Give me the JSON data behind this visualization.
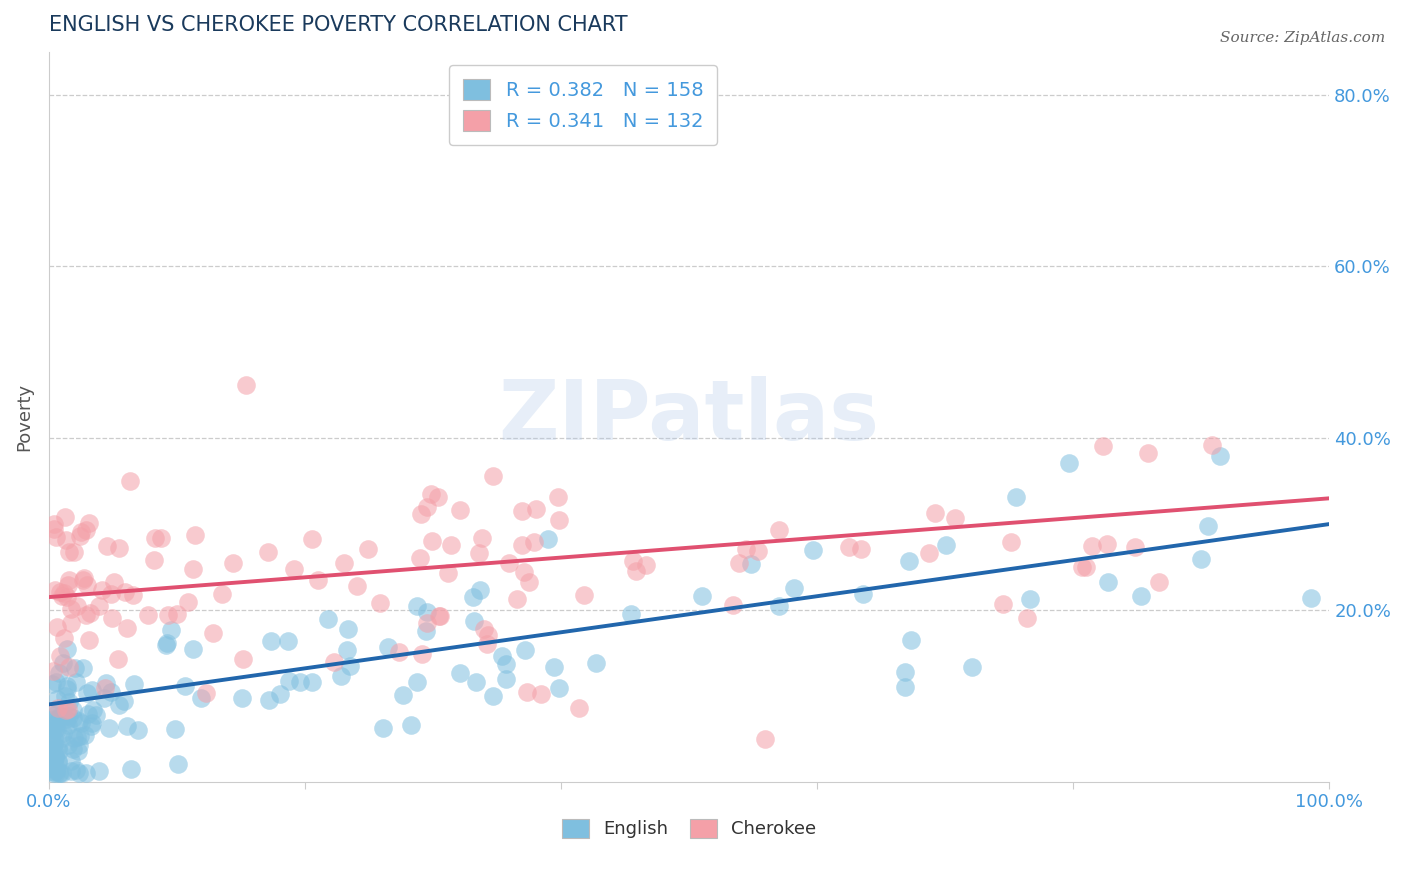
{
  "title": "ENGLISH VS CHEROKEE POVERTY CORRELATION CHART",
  "source": "Source: ZipAtlas.com",
  "ylabel": "Poverty",
  "xlim": [
    0.0,
    1.0
  ],
  "ylim": [
    0.0,
    0.85
  ],
  "xticks": [
    0.0,
    0.2,
    0.4,
    0.6,
    0.8,
    1.0
  ],
  "yticks": [
    0.2,
    0.4,
    0.6,
    0.8
  ],
  "english_color": "#7fbfdf",
  "cherokee_color": "#f4a0a8",
  "english_R": 0.382,
  "english_N": 158,
  "cherokee_R": 0.341,
  "cherokee_N": 132,
  "legend_english": "R = 0.382   N = 158",
  "legend_cherokee": "R = 0.341   N = 132",
  "legend_label_english": "English",
  "legend_label_cherokee": "Cherokee",
  "english_line_color": "#2166ac",
  "cherokee_line_color": "#e05070",
  "english_line_intercept": 0.09,
  "english_line_slope": 0.21,
  "cherokee_line_intercept": 0.215,
  "cherokee_line_slope": 0.115,
  "watermark_text": "ZIPatlas",
  "watermark_color": "#b0c8e8",
  "watermark_alpha": 0.3,
  "background_color": "#ffffff",
  "grid_color": "#cccccc",
  "title_color": "#1a3a5c",
  "source_color": "#666666",
  "axis_label_color": "#4499dd",
  "ylabel_color": "#555555"
}
